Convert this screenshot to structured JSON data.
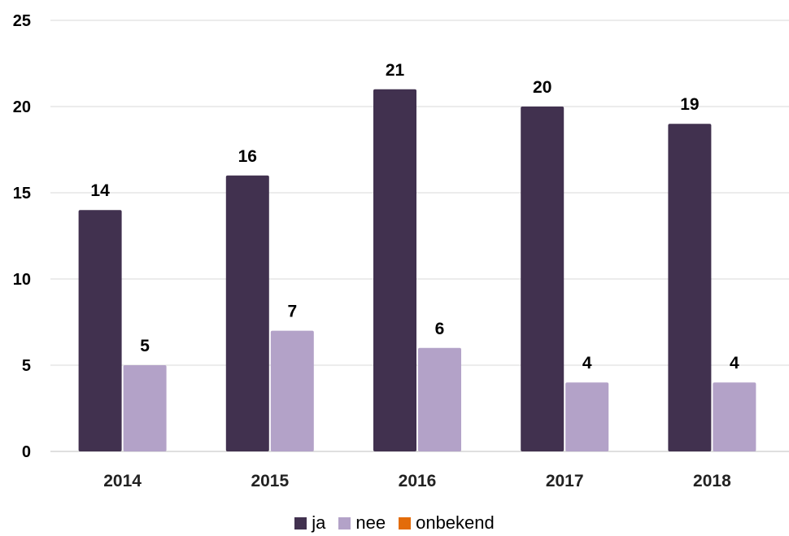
{
  "chart_data": {
    "type": "bar",
    "categories": [
      "2014",
      "2015",
      "2016",
      "2017",
      "2018"
    ],
    "series": [
      {
        "name": "ja",
        "values": [
          14,
          16,
          21,
          20,
          19
        ],
        "color": "#41314f"
      },
      {
        "name": "nee",
        "values": [
          5,
          7,
          6,
          4,
          4
        ],
        "color": "#b3a2c8"
      },
      {
        "name": "onbekend",
        "values": [
          0,
          0,
          0,
          0,
          0
        ],
        "color": "#e36c0a"
      }
    ],
    "yticks": [
      "0",
      "5",
      "10",
      "15",
      "20",
      "25"
    ],
    "ylim": [
      0,
      25
    ],
    "grid": true,
    "legend_position": "bottom",
    "title": "",
    "xlabel": "",
    "ylabel": ""
  }
}
